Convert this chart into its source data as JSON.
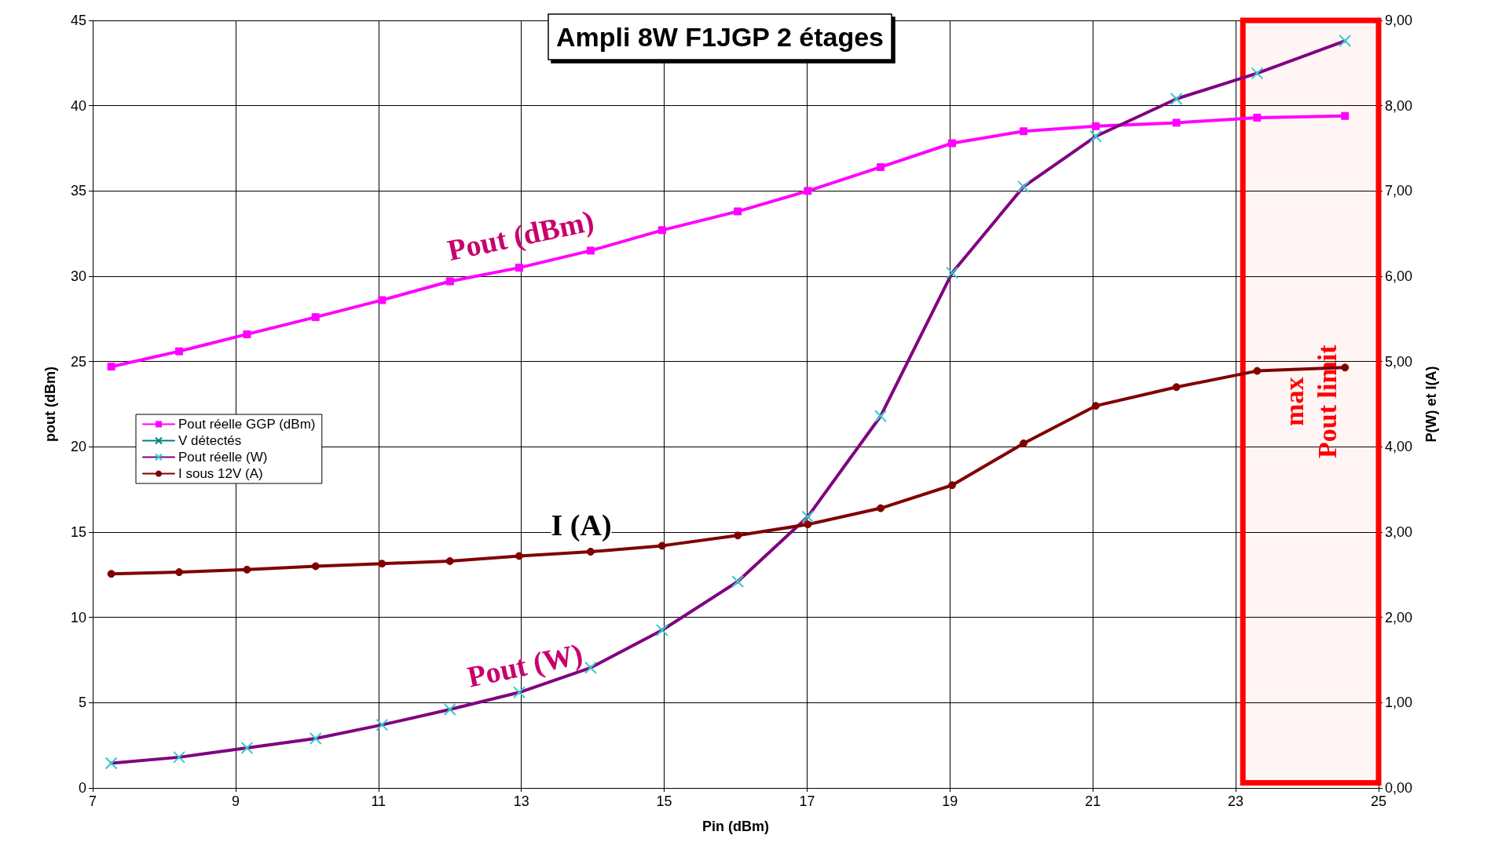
{
  "chart_data": {
    "type": "line",
    "title": "Ampli 8W F1JGP 2 étages",
    "xlabel": "Pin (dBm)",
    "ylabel": "pout (dBm)",
    "y2label": "P(W) et I(A)",
    "x": [
      7.26,
      8.21,
      9.16,
      10.12,
      11.05,
      12.0,
      12.97,
      13.97,
      14.97,
      16.03,
      17.01,
      18.03,
      19.03,
      20.03,
      21.04,
      22.17,
      23.3,
      24.53
    ],
    "series": [
      {
        "name": "Pout réelle GGP (dBm)",
        "color": "#ff00ff",
        "marker": "square",
        "values": [
          24.7,
          25.6,
          26.6,
          27.6,
          28.6,
          29.7,
          30.5,
          31.5,
          32.7,
          33.8,
          35.0,
          36.4,
          37.8,
          38.5,
          38.8,
          39.0,
          39.3,
          39.4
        ]
      },
      {
        "name": "V détectés",
        "color": "#008080",
        "marker": "cross",
        "axis": "y2",
        "values": [
          null,
          null,
          null,
          null,
          null,
          null,
          null,
          null,
          null,
          null,
          null,
          null,
          null,
          null,
          null,
          null,
          null,
          null
        ]
      },
      {
        "name": "Pout réelle (W)",
        "color": "#800080",
        "marker": "cross",
        "axis": "y2",
        "values": [
          0.29,
          0.36,
          0.47,
          0.58,
          0.74,
          0.92,
          1.12,
          1.41,
          1.85,
          2.42,
          3.18,
          4.36,
          6.04,
          7.05,
          7.64,
          8.08,
          8.38,
          8.76
        ]
      },
      {
        "name": "I sous 12V (A)",
        "color": "#800000",
        "marker": "circle",
        "axis": "y2",
        "values": [
          2.51,
          2.53,
          2.56,
          2.6,
          2.63,
          2.66,
          2.72,
          2.77,
          2.84,
          2.96,
          3.09,
          3.28,
          3.55,
          4.04,
          4.48,
          4.7,
          4.89,
          4.93
        ]
      }
    ],
    "xlim": [
      7,
      25
    ],
    "xticks": [
      7,
      9,
      11,
      13,
      15,
      17,
      19,
      21,
      23,
      25
    ],
    "ylim": [
      0,
      45
    ],
    "yticks": [
      0,
      5,
      10,
      15,
      20,
      25,
      30,
      35,
      40,
      45
    ],
    "y2lim": [
      0,
      9
    ],
    "y2ticks": [
      {
        "value": 0,
        "label": "0,00"
      },
      {
        "value": 1,
        "label": "1,00"
      },
      {
        "value": 2,
        "label": "2,00"
      },
      {
        "value": 3,
        "label": "3,00"
      },
      {
        "value": 4,
        "label": "4,00"
      },
      {
        "value": 5,
        "label": "5,00"
      },
      {
        "value": 6,
        "label": "6,00"
      },
      {
        "value": 7,
        "label": "7,00"
      },
      {
        "value": 8,
        "label": "8,00"
      },
      {
        "value": 9,
        "label": "9,00"
      }
    ],
    "bands": [
      {
        "axis": "x",
        "from": 23.1,
        "to": 25,
        "label": "max\nPout limit",
        "color": "#ff0000"
      }
    ],
    "annotations": [
      "Pout (dBm)",
      "I (A)",
      "Pout (W)"
    ],
    "grid": true,
    "legend": "left",
    "line_style": "solid"
  }
}
